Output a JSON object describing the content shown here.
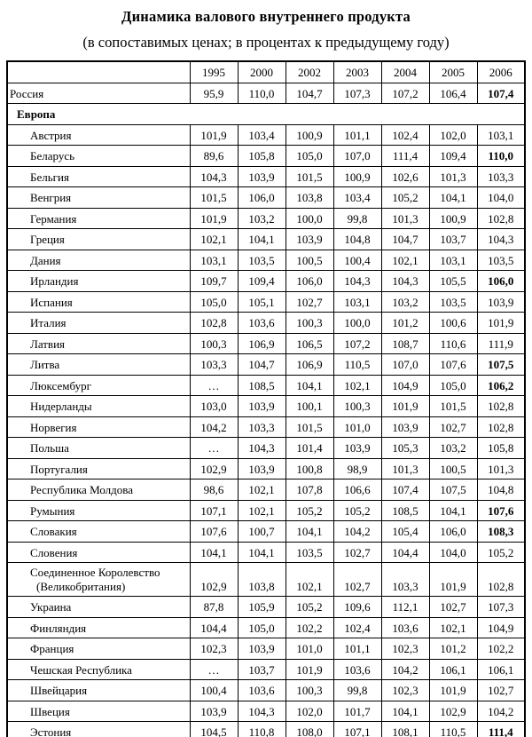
{
  "title": "Динамика валового внутреннего продукта",
  "subtitle": "(в сопоставимых  ценах; в процентах к предыдущему году)",
  "table": {
    "corner_label": "",
    "year_headers": [
      "1995",
      "2000",
      "2002",
      "2003",
      "2004",
      "2005",
      "2006"
    ],
    "rows": [
      {
        "type": "data",
        "label": "Россия",
        "indent": false,
        "values": [
          "95,9",
          "110,0",
          "104,7",
          "107,3",
          "107,2",
          "106,4",
          "107,4"
        ],
        "bold_last": true
      },
      {
        "type": "section",
        "label": "Европа"
      },
      {
        "type": "data",
        "label": "Австрия",
        "indent": true,
        "values": [
          "101,9",
          "103,4",
          "100,9",
          "101,1",
          "102,4",
          "102,0",
          "103,1"
        ],
        "bold_last": false
      },
      {
        "type": "data",
        "label": "Беларусь",
        "indent": true,
        "values": [
          "89,6",
          "105,8",
          "105,0",
          "107,0",
          "111,4",
          "109,4",
          "110,0"
        ],
        "bold_last": true
      },
      {
        "type": "data",
        "label": "Бельгия",
        "indent": true,
        "values": [
          "104,3",
          "103,9",
          "101,5",
          "100,9",
          "102,6",
          "101,3",
          "103,3"
        ],
        "bold_last": false
      },
      {
        "type": "data",
        "label": "Венгрия",
        "indent": true,
        "values": [
          "101,5",
          "106,0",
          "103,8",
          "103,4",
          "105,2",
          "104,1",
          "104,0"
        ],
        "bold_last": false
      },
      {
        "type": "data",
        "label": "Германия",
        "indent": true,
        "values": [
          "101,9",
          "103,2",
          "100,0",
          "99,8",
          "101,3",
          "100,9",
          "102,8"
        ],
        "bold_last": false
      },
      {
        "type": "data",
        "label": "Греция",
        "indent": true,
        "values": [
          "102,1",
          "104,1",
          "103,9",
          "104,8",
          "104,7",
          "103,7",
          "104,3"
        ],
        "bold_last": false
      },
      {
        "type": "data",
        "label": "Дания",
        "indent": true,
        "values": [
          "103,1",
          "103,5",
          "100,5",
          "100,4",
          "102,1",
          "103,1",
          "103,5"
        ],
        "bold_last": false
      },
      {
        "type": "data",
        "label": "Ирландия",
        "indent": true,
        "values": [
          "109,7",
          "109,4",
          "106,0",
          "104,3",
          "104,3",
          "105,5",
          "106,0"
        ],
        "bold_last": true
      },
      {
        "type": "data",
        "label": "Испания",
        "indent": true,
        "values": [
          "105,0",
          "105,1",
          "102,7",
          "103,1",
          "103,2",
          "103,5",
          "103,9"
        ],
        "bold_last": false
      },
      {
        "type": "data",
        "label": "Италия",
        "indent": true,
        "values": [
          "102,8",
          "103,6",
          "100,3",
          "100,0",
          "101,2",
          "100,6",
          "101,9"
        ],
        "bold_last": false
      },
      {
        "type": "data",
        "label": "Латвия",
        "indent": true,
        "values": [
          "100,3",
          "106,9",
          "106,5",
          "107,2",
          "108,7",
          "110,6",
          "111,9"
        ],
        "bold_last": false
      },
      {
        "type": "data",
        "label": "Литва",
        "indent": true,
        "values": [
          "103,3",
          "104,7",
          "106,9",
          "110,5",
          "107,0",
          "107,6",
          "107,5"
        ],
        "bold_last": true
      },
      {
        "type": "data",
        "label": "Люксембург",
        "indent": true,
        "values": [
          "…",
          "108,5",
          "104,1",
          "102,1",
          "104,9",
          "105,0",
          "106,2"
        ],
        "bold_last": true
      },
      {
        "type": "data",
        "label": "Нидерланды",
        "indent": true,
        "values": [
          "103,0",
          "103,9",
          "100,1",
          "100,3",
          "101,9",
          "101,5",
          "102,8"
        ],
        "bold_last": false
      },
      {
        "type": "data",
        "label": "Норвегия",
        "indent": true,
        "values": [
          "104,2",
          "103,3",
          "101,5",
          "101,0",
          "103,9",
          "102,7",
          "102,8"
        ],
        "bold_last": false
      },
      {
        "type": "data",
        "label": "Польша",
        "indent": true,
        "values": [
          "…",
          "104,3",
          "101,4",
          "103,9",
          "105,3",
          "103,2",
          "105,8"
        ],
        "bold_last": false
      },
      {
        "type": "data",
        "label": "Португалия",
        "indent": true,
        "values": [
          "102,9",
          "103,9",
          "100,8",
          "98,9",
          "101,3",
          "100,5",
          "101,3"
        ],
        "bold_last": false
      },
      {
        "type": "data",
        "label": "Республика Молдова",
        "indent": true,
        "values": [
          "98,6",
          "102,1",
          "107,8",
          "106,6",
          "107,4",
          "107,5",
          "104,8"
        ],
        "bold_last": false
      },
      {
        "type": "data",
        "label": "Румыния",
        "indent": true,
        "values": [
          "107,1",
          "102,1",
          "105,2",
          "105,2",
          "108,5",
          "104,1",
          "107,6"
        ],
        "bold_last": true
      },
      {
        "type": "data",
        "label": "Словакия",
        "indent": true,
        "values": [
          "107,6",
          "100,7",
          "104,1",
          "104,2",
          "105,4",
          "106,0",
          "108,3"
        ],
        "bold_last": true
      },
      {
        "type": "data",
        "label": "Словения",
        "indent": true,
        "values": [
          "104,1",
          "104,1",
          "103,5",
          "102,7",
          "104,4",
          "104,0",
          "105,2"
        ],
        "bold_last": false
      },
      {
        "type": "data",
        "label": "Соединенное Королевство",
        "label_line2": "(Великобритания)",
        "indent": true,
        "values": [
          "102,9",
          "103,8",
          "102,1",
          "102,7",
          "103,3",
          "101,9",
          "102,8"
        ],
        "bold_last": false
      },
      {
        "type": "data",
        "label": "Украина",
        "indent": true,
        "values": [
          "87,8",
          "105,9",
          "105,2",
          "109,6",
          "112,1",
          "102,7",
          "107,3"
        ],
        "bold_last": false
      },
      {
        "type": "data",
        "label": "Финляндия",
        "indent": true,
        "values": [
          "104,4",
          "105,0",
          "102,2",
          "102,4",
          "103,6",
          "102,1",
          "104,9"
        ],
        "bold_last": false
      },
      {
        "type": "data",
        "label": "Франция",
        "indent": true,
        "values": [
          "102,3",
          "103,9",
          "101,0",
          "101,1",
          "102,3",
          "101,2",
          "102,2"
        ],
        "bold_last": false
      },
      {
        "type": "data",
        "label": "Чешская Республика",
        "indent": true,
        "values": [
          "…",
          "103,7",
          "101,9",
          "103,6",
          "104,2",
          "106,1",
          "106,1"
        ],
        "bold_last": false
      },
      {
        "type": "data",
        "label": "Швейцария",
        "indent": true,
        "values": [
          "100,4",
          "103,6",
          "100,3",
          "99,8",
          "102,3",
          "101,9",
          "102,7"
        ],
        "bold_last": false
      },
      {
        "type": "data",
        "label": "Швеция",
        "indent": true,
        "values": [
          "103,9",
          "104,3",
          "102,0",
          "101,7",
          "104,1",
          "102,9",
          "104,2"
        ],
        "bold_last": false
      },
      {
        "type": "data",
        "label": "Эстония",
        "indent": true,
        "values": [
          "104,5",
          "110,8",
          "108,0",
          "107,1",
          "108,1",
          "110,5",
          "111,4"
        ],
        "bold_last": true
      }
    ]
  }
}
